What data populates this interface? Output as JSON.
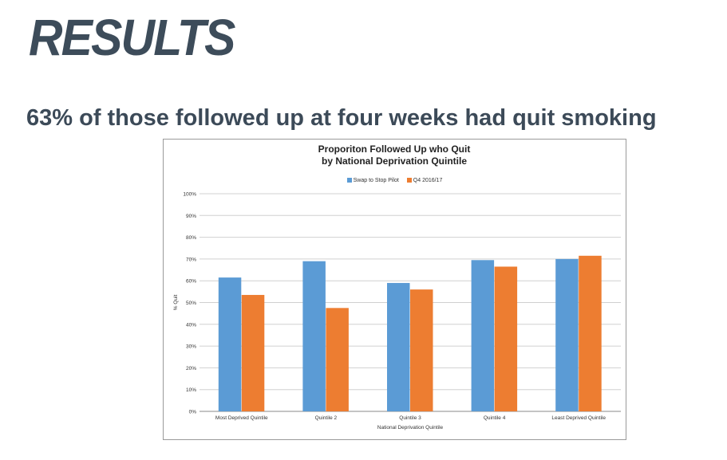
{
  "slide": {
    "title": "RESULTS",
    "headline": "63% of those followed up at four weeks had quit smoking"
  },
  "colors": {
    "title_text": "#3d4c5a",
    "series_1": "#5b9bd5",
    "series_2": "#ed7d31"
  },
  "chart_data": {
    "type": "bar",
    "title_line1": "Proporiton Followed Up who Quit",
    "title_line2": "by National Deprivation Quintile",
    "xlabel": "National Deprivation Quintile",
    "ylabel": "% Quit",
    "ylim": [
      0,
      100
    ],
    "yticks": [
      "0%",
      "10%",
      "20%",
      "30%",
      "40%",
      "50%",
      "60%",
      "70%",
      "80%",
      "90%",
      "100%"
    ],
    "categories": [
      "Most Deprived Quintile",
      "Quintile 2",
      "Quintile 3",
      "Quintile 4",
      "Least Deprived Quintile"
    ],
    "series": [
      {
        "name": "Swap to Stop Pilot",
        "values": [
          61.5,
          69,
          59,
          69.5,
          70
        ]
      },
      {
        "name": "Q4 2016/17",
        "values": [
          53.5,
          47.5,
          56,
          66.5,
          71.5
        ]
      }
    ],
    "grid": true,
    "legend_position": "top-center"
  }
}
